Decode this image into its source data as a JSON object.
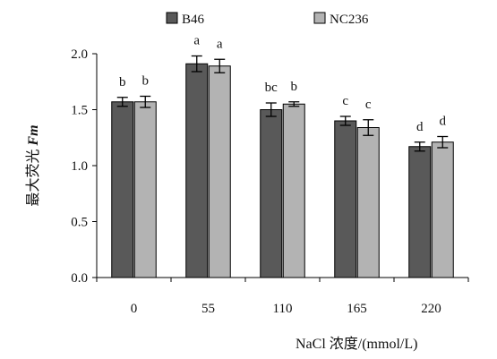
{
  "chart_data": {
    "type": "bar",
    "categories": [
      "0",
      "55",
      "110",
      "165",
      "220"
    ],
    "series": [
      {
        "name": "B46",
        "color": "#595959",
        "values": [
          1.57,
          1.91,
          1.5,
          1.4,
          1.17
        ],
        "errors": [
          0.04,
          0.07,
          0.06,
          0.04,
          0.04
        ],
        "sig": [
          "b",
          "a",
          "bc",
          "c",
          "d"
        ]
      },
      {
        "name": "NC236",
        "color": "#b3b3b3",
        "values": [
          1.57,
          1.89,
          1.55,
          1.34,
          1.21
        ],
        "errors": [
          0.05,
          0.06,
          0.02,
          0.07,
          0.05
        ],
        "sig": [
          "b",
          "a",
          "b",
          "c",
          "d"
        ]
      }
    ],
    "ylim": [
      0,
      2.0
    ],
    "yticks": [
      "0.0",
      "0.5",
      "1.0",
      "1.5",
      "2.0"
    ],
    "ytick_values": [
      0,
      0.5,
      1.0,
      1.5,
      2.0
    ],
    "ylabel_cn": "最大荧光",
    "ylabel_sym": "Fm",
    "xlabel_prefix": "NaCl",
    "xlabel_rest": "浓度/(mmol/L)",
    "legend_position": "top",
    "grid": false
  }
}
